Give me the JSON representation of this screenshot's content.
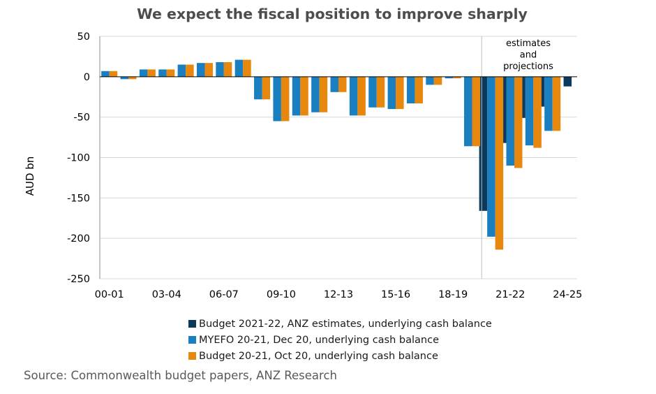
{
  "chart_data": {
    "type": "bar",
    "title": "We expect the fiscal position to improve sharply",
    "ylabel": "AUD bn",
    "xlabel": "",
    "ylim": [
      -250,
      50
    ],
    "yticks": [
      50,
      0,
      -50,
      -100,
      -150,
      -200,
      -250
    ],
    "grid": true,
    "categories": [
      "00-01",
      "01-02",
      "02-03",
      "03-04",
      "04-05",
      "05-06",
      "06-07",
      "07-08",
      "08-09",
      "09-10",
      "10-11",
      "11-12",
      "12-13",
      "13-14",
      "14-15",
      "15-16",
      "16-17",
      "17-18",
      "18-19",
      "19-20",
      "20-21",
      "21-22",
      "22-23",
      "23-24",
      "24-25"
    ],
    "xtick_labels": [
      "00-01",
      "03-04",
      "06-07",
      "09-10",
      "12-13",
      "15-16",
      "18-19",
      "21-22",
      "24-25"
    ],
    "annotation": "estimates\nand\nprojections",
    "series": [
      {
        "name": "Budget 2021-22, ANZ estimates, underlying cash balance",
        "color": "#0b3a5c",
        "values": [
          null,
          null,
          null,
          null,
          null,
          null,
          null,
          null,
          null,
          null,
          null,
          null,
          null,
          null,
          null,
          null,
          null,
          null,
          null,
          null,
          -166,
          -82,
          -51,
          -37,
          -12
        ]
      },
      {
        "name": "MYEFO 20-21, Dec 20, underlying cash balance",
        "color": "#1a7fc0",
        "values": [
          7,
          -3,
          9,
          9,
          15,
          17,
          18,
          21,
          -28,
          -55,
          -48,
          -44,
          -19,
          -48,
          -38,
          -40,
          -33,
          -10,
          -2,
          -86,
          -198,
          -110,
          -85,
          -67,
          null
        ]
      },
      {
        "name": "Budget 20-21, Oct 20, underlying cash balance",
        "color": "#e8870e",
        "values": [
          7,
          -3,
          9,
          9,
          15,
          17,
          18,
          21,
          -28,
          -55,
          -48,
          -44,
          -19,
          -48,
          -38,
          -40,
          -33,
          -10,
          -2,
          -86,
          -214,
          -113,
          -88,
          -67,
          null
        ]
      }
    ],
    "legend_position": "bottom"
  },
  "source": "Source: Commonwealth budget papers, ANZ Research"
}
